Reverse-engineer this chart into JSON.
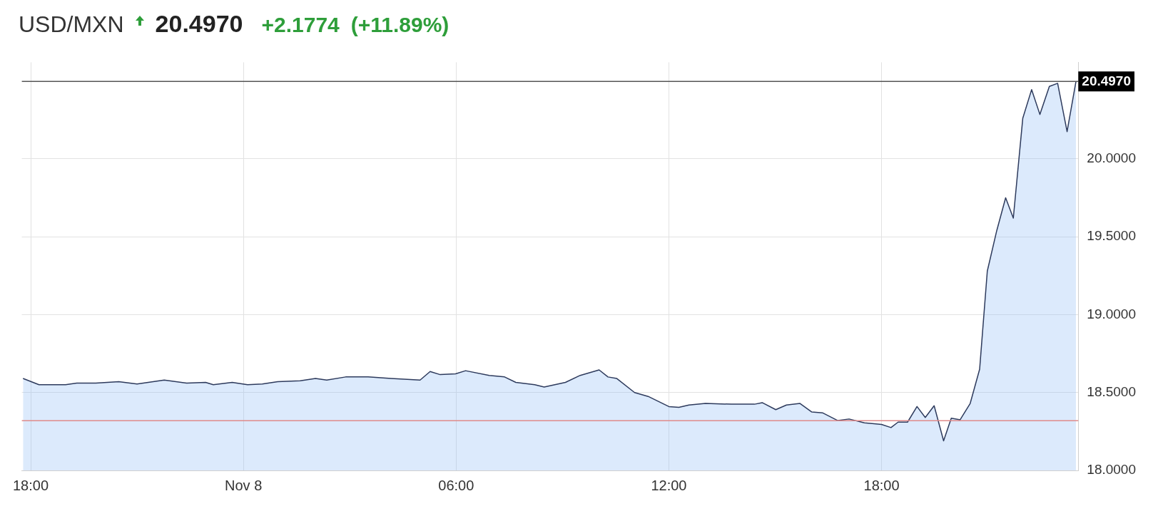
{
  "chart_data": {
    "type": "area",
    "title": "USD/MXN",
    "annotations": [
      "20.4970",
      "+2.1774",
      "(+11.89%)"
    ],
    "x": [
      "--11-07T17:47",
      "--11-07T18:14",
      "--11-07T18:59",
      "--11-07T19:18",
      "--11-07T19:50",
      "--11-07T20:29",
      "--11-07T21:00",
      "--11-07T21:46",
      "--11-07T22:24",
      "--11-07T22:56",
      "--11-07T23:09",
      "--11-07T23:41",
      "--11-08T00:07",
      "--11-08T00:32",
      "--11-08T00:58",
      "--11-08T01:36",
      "--11-08T02:02",
      "--11-08T02:21",
      "--11-08T02:53",
      "--11-08T03:31",
      "--11-08T04:10",
      "--11-08T04:59",
      "--11-08T05:16",
      "--11-08T05:33",
      "--11-08T05:59",
      "--11-08T06:16",
      "--11-08T06:56",
      "--11-08T07:22",
      "--11-08T07:41",
      "--11-08T08:13",
      "--11-08T08:29",
      "--11-08T09:05",
      "--11-08T09:30",
      "--11-08T10:02",
      "--11-08T10:17",
      "--11-08T10:32",
      "--11-08T11:02",
      "--11-08T11:25",
      "--11-08T12:00",
      "--11-08T12:17",
      "--11-08T12:34",
      "--11-08T13:02",
      "--11-08T13:46",
      "--11-08T14:25",
      "--11-08T14:38",
      "--11-08T15:01",
      "--11-08T15:19",
      "--11-08T15:42",
      "--11-08T16:02",
      "--11-08T16:20",
      "--11-08T16:46",
      "--11-08T17:05",
      "--11-08T17:31",
      "--11-08T18:00",
      "--11-08T18:16",
      "--11-08T18:28",
      "--11-08T18:44",
      "--11-08T19:00",
      "--11-08T19:14",
      "--11-08T19:29",
      "--11-08T19:45",
      "--11-08T19:58",
      "--11-08T20:13",
      "--11-08T20:30",
      "--11-08T20:46",
      "--11-08T20:59",
      "--11-08T21:15",
      "--11-08T21:30",
      "--11-08T21:43",
      "--11-08T21:59",
      "--11-08T22:14",
      "--11-08T22:28",
      "--11-08T22:44",
      "--11-08T22:58",
      "--11-08T23:14",
      "--11-08T23:29"
    ],
    "series": [
      {
        "color": "#2d3a5c",
        "values": [
          18.59,
          18.55,
          18.55,
          18.56,
          18.56,
          18.57,
          18.555,
          18.58,
          18.56,
          18.565,
          18.55,
          18.565,
          18.55,
          18.555,
          18.57,
          18.575,
          18.59,
          18.58,
          18.6,
          18.6,
          18.59,
          18.58,
          18.635,
          18.615,
          18.62,
          18.64,
          18.61,
          18.6,
          18.565,
          18.55,
          18.535,
          18.565,
          18.61,
          18.645,
          18.6,
          18.59,
          18.5,
          18.475,
          18.41,
          18.405,
          18.42,
          18.43,
          18.425,
          18.425,
          18.435,
          18.39,
          18.42,
          18.43,
          18.375,
          18.37,
          18.32,
          18.33,
          18.305,
          18.295,
          18.275,
          18.31,
          18.31,
          18.41,
          18.34,
          18.415,
          18.19,
          18.335,
          18.325,
          18.43,
          18.65,
          19.28,
          19.54,
          19.75,
          19.62,
          20.26,
          20.445,
          20.285,
          20.465,
          20.485,
          20.175,
          20.497
        ]
      }
    ],
    "xlim": [
      "--11-07T17:45",
      "--11-08T23:33"
    ],
    "xticks": [
      {
        "value": "--11-07T18:00",
        "label": "18:00"
      },
      {
        "value": "--11-08T00:00",
        "label": "Nov 8"
      },
      {
        "value": "--11-08T06:00",
        "label": "06:00"
      },
      {
        "value": "--11-08T12:00",
        "label": "12:00"
      },
      {
        "value": "--11-08T18:00",
        "label": "18:00"
      }
    ],
    "ylim": [
      18,
      20.62
    ],
    "yticks": [
      {
        "value": 18,
        "label": "18.0000"
      },
      {
        "value": 18.5,
        "label": "18.5000"
      },
      {
        "value": 19,
        "label": "19.0000"
      },
      {
        "value": 19.5,
        "label": "19.5000"
      },
      {
        "value": 20,
        "label": "20.0000"
      }
    ],
    "ref_lines": [
      {
        "axis": "y",
        "value": 20.497,
        "label": "20.4970",
        "color": "#555555"
      },
      {
        "axis": "y",
        "value": 18.3196,
        "color": "#e08a8a"
      }
    ],
    "grid": true,
    "legend": false,
    "marker": "none",
    "line_style": "solid"
  }
}
